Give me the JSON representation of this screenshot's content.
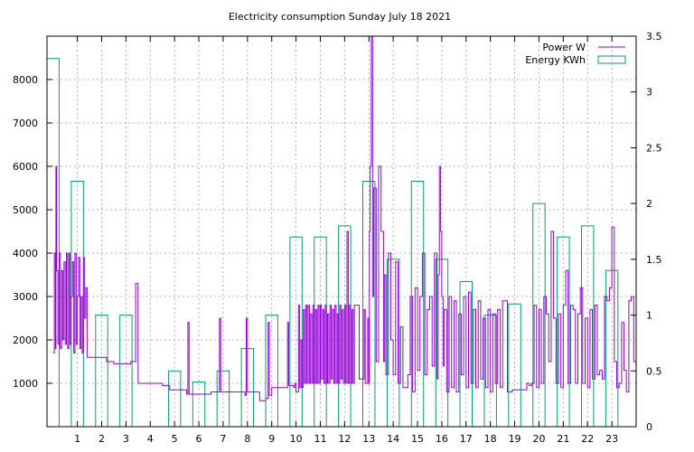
{
  "colors": {
    "power": "#9400d3",
    "energy": "#009e73",
    "grid": "#a0a0a0",
    "axis": "#000000"
  },
  "chart_data": {
    "type": "bar",
    "title": "Electricity consumption Sunday July 18 2021",
    "xlabel": "",
    "ylabel": "",
    "xlim": [
      -0.25,
      24
    ],
    "ylim": [
      0,
      9000
    ],
    "y2lim": [
      0,
      3.5
    ],
    "xticks": [
      1,
      2,
      3,
      4,
      5,
      6,
      7,
      8,
      9,
      10,
      11,
      12,
      13,
      14,
      15,
      16,
      17,
      18,
      19,
      20,
      21,
      22,
      23
    ],
    "yticks": [
      1000,
      2000,
      3000,
      4000,
      5000,
      6000,
      7000,
      8000
    ],
    "y2ticks": [
      0,
      0.5,
      1,
      1.5,
      2,
      2.5,
      3,
      3.5
    ],
    "y2ticklabels": [
      "0",
      "0.5",
      "1",
      "1.5",
      "2",
      "2.5",
      "3",
      "3.5"
    ],
    "grid": true,
    "legend_position": "top-right",
    "legend": [
      {
        "name": "Power W",
        "style": "line"
      },
      {
        "name": "Energy KWh",
        "style": "box"
      }
    ],
    "energy_kwh": {
      "hours": [
        0,
        1,
        2,
        3,
        4,
        5,
        6,
        7,
        8,
        9,
        10,
        11,
        12,
        13,
        14,
        15,
        16,
        17,
        18,
        19,
        20,
        21,
        22,
        23
      ],
      "values": [
        3.3,
        2.2,
        1.0,
        1.0,
        0,
        0.5,
        0.4,
        0.5,
        0.7,
        1.0,
        1.7,
        1.7,
        1.8,
        2.2,
        1.5,
        2.2,
        1.5,
        1.3,
        1.0,
        1.1,
        2.0,
        1.7,
        1.8,
        1.4
      ]
    },
    "power_w": {
      "x": [
        0,
        0.05,
        0.1,
        0.12,
        0.15,
        0.2,
        0.25,
        0.3,
        0.35,
        0.4,
        0.45,
        0.5,
        0.55,
        0.6,
        0.65,
        0.7,
        0.75,
        0.8,
        0.85,
        0.9,
        0.95,
        1.0,
        1.05,
        1.1,
        1.15,
        1.2,
        1.25,
        1.3,
        1.35,
        1.4,
        1.5,
        2.0,
        2.2,
        2.5,
        2.8,
        3.2,
        3.4,
        3.5,
        4.0,
        4.5,
        4.8,
        5.2,
        5.5,
        5.55,
        5.6,
        6.0,
        6.5,
        6.8,
        6.85,
        6.9,
        7.5,
        7.9,
        7.95,
        8.0,
        8.1,
        8.5,
        8.7,
        8.75,
        8.8,
        8.85,
        8.9,
        9.0,
        9.3,
        9.6,
        9.65,
        9.7,
        9.9,
        9.95,
        10.0,
        10.1,
        10.15,
        10.2,
        10.25,
        10.3,
        10.35,
        10.4,
        10.45,
        10.5,
        10.55,
        10.6,
        10.65,
        10.7,
        10.75,
        10.8,
        10.85,
        10.9,
        10.95,
        11.0,
        11.05,
        11.1,
        11.15,
        11.2,
        11.25,
        11.3,
        11.35,
        11.4,
        11.45,
        11.5,
        11.55,
        11.6,
        11.65,
        11.7,
        11.75,
        11.8,
        11.85,
        11.9,
        11.95,
        12.0,
        12.05,
        12.1,
        12.15,
        12.2,
        12.25,
        12.3,
        12.35,
        12.4,
        12.6,
        12.8,
        12.85,
        12.9,
        12.95,
        13.0,
        13.02,
        13.05,
        13.1,
        13.15,
        13.2,
        13.3,
        13.4,
        13.5,
        13.6,
        13.65,
        13.7,
        13.8,
        13.9,
        14.0,
        14.1,
        14.2,
        14.3,
        14.4,
        14.5,
        14.6,
        14.7,
        14.8,
        14.9,
        15.0,
        15.1,
        15.2,
        15.3,
        15.4,
        15.5,
        15.6,
        15.7,
        15.8,
        15.85,
        15.9,
        15.95,
        16.0,
        16.05,
        16.1,
        16.2,
        16.3,
        16.4,
        16.5,
        16.6,
        16.7,
        16.8,
        16.9,
        17.0,
        17.1,
        17.2,
        17.3,
        17.4,
        17.5,
        17.6,
        17.7,
        17.8,
        17.9,
        18.0,
        18.1,
        18.2,
        18.3,
        18.4,
        18.5,
        18.7,
        18.9,
        19.1,
        19.3,
        19.5,
        19.6,
        19.7,
        19.8,
        19.9,
        20.0,
        20.1,
        20.2,
        20.3,
        20.4,
        20.5,
        20.6,
        20.7,
        20.8,
        20.9,
        21.0,
        21.1,
        21.2,
        21.3,
        21.4,
        21.5,
        21.6,
        21.7,
        21.8,
        21.9,
        22.0,
        22.1,
        22.2,
        22.3,
        22.4,
        22.5,
        22.6,
        22.7,
        22.8,
        22.9,
        23.0,
        23.1,
        23.2,
        23.3,
        23.4,
        23.5,
        23.6,
        23.7,
        23.8,
        23.9,
        24.0
      ],
      "y": [
        1700,
        4000,
        1800,
        6000,
        3600,
        1900,
        4000,
        1800,
        3600,
        2000,
        3800,
        1900,
        4000,
        1800,
        4000,
        1900,
        3000,
        3800,
        1700,
        4000,
        1900,
        3000,
        3900,
        1800,
        3000,
        1700,
        3900,
        2500,
        3200,
        1600,
        1600,
        1600,
        1500,
        1450,
        1450,
        1500,
        3300,
        1000,
        1000,
        950,
        850,
        850,
        750,
        2400,
        750,
        750,
        800,
        800,
        2500,
        800,
        800,
        720,
        2500,
        800,
        800,
        600,
        600,
        650,
        650,
        2400,
        720,
        900,
        900,
        900,
        2400,
        950,
        900,
        1000,
        800,
        2800,
        900,
        2000,
        900,
        2700,
        1000,
        2800,
        1000,
        2800,
        1000,
        2600,
        1000,
        2800,
        1000,
        2700,
        1000,
        2800,
        1000,
        2800,
        1100,
        2700,
        1000,
        2800,
        1000,
        2600,
        1000,
        2800,
        1100,
        2700,
        1000,
        2800,
        1000,
        2600,
        1000,
        2800,
        1100,
        2700,
        1000,
        2800,
        1000,
        4500,
        1000,
        2800,
        1000,
        2700,
        1000,
        2800,
        1100,
        2700,
        1000,
        1000,
        2500,
        1000,
        4500,
        6000,
        9000,
        3000,
        5500,
        1500,
        6000,
        4500,
        1500,
        3500,
        1200,
        4000,
        2000,
        1200,
        3800,
        1000,
        2300,
        900,
        900,
        1200,
        3000,
        800,
        3200,
        1300,
        3000,
        4000,
        1200,
        2700,
        3000,
        1400,
        4000,
        1100,
        3500,
        6000,
        4500,
        3000,
        1400,
        2700,
        800,
        3000,
        900,
        2900,
        800,
        2600,
        1200,
        3000,
        900,
        3100,
        1000,
        2700,
        900,
        2900,
        1100,
        2500,
        900,
        2700,
        800,
        2600,
        1000,
        2700,
        900,
        2900,
        800,
        850,
        850,
        850,
        1000,
        950,
        1000,
        2800,
        900,
        2700,
        1000,
        3000,
        2600,
        1500,
        4500,
        2500,
        1000,
        2600,
        900,
        2800,
        3600,
        1000,
        2800,
        2700,
        1000,
        2600,
        3200,
        1000,
        2500,
        900,
        2700,
        1100,
        2800,
        1200,
        1300,
        1100,
        3000,
        2900,
        3200,
        4600,
        1500,
        900,
        1000,
        2400,
        1300,
        800,
        2900,
        3000,
        1500,
        1000
      ]
    }
  }
}
